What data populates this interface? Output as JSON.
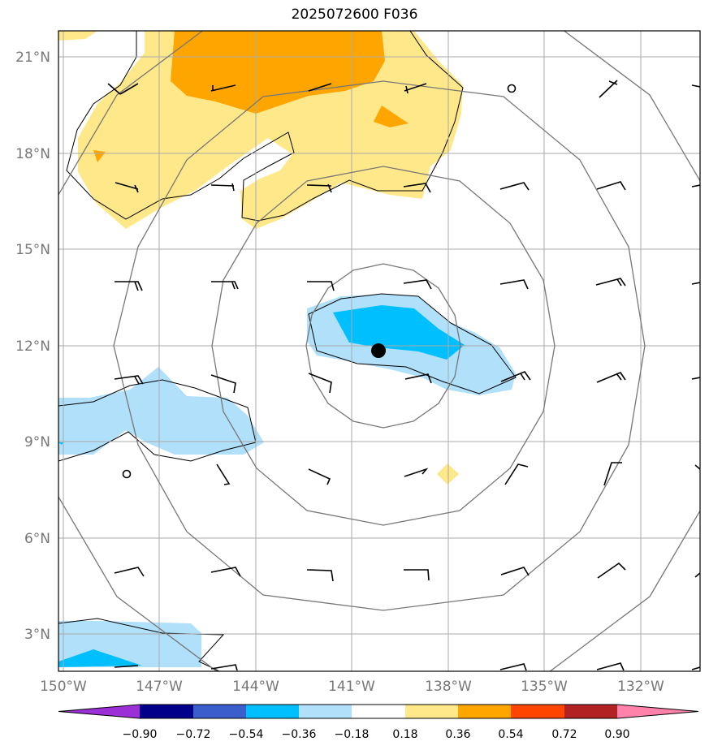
{
  "title": "2025072600 F036",
  "map": {
    "lat_labels": [
      "21°N",
      "18°N",
      "15°N",
      "12°N",
      "9°N",
      "6°N",
      "3°N"
    ],
    "lon_labels": [
      "150°W",
      "147°W",
      "144°W",
      "141°W",
      "138°W",
      "135°W",
      "132°W"
    ],
    "lat_values": [
      21,
      18,
      15,
      12,
      9,
      6,
      3
    ],
    "lon_values": [
      -150,
      -147,
      -144,
      -141,
      -138,
      -135,
      -132
    ],
    "extent": {
      "lon_min": -150,
      "lon_max": -130,
      "lat_min": 2,
      "lat_max": 22
    },
    "center_marker": {
      "lon": -140.1,
      "lat": 11.85
    },
    "range_rings_deg": [
      3,
      6,
      9,
      12
    ]
  },
  "colorbar": {
    "tick_labels": [
      "−0.90",
      "−0.72",
      "−0.54",
      "−0.36",
      "−0.18",
      "0.18",
      "0.36",
      "0.54",
      "0.72",
      "0.90"
    ],
    "colors": [
      "#9b30d6",
      "#00008b",
      "#3a5fcd",
      "#00bfff",
      "#b0e0fa",
      "#ffffff",
      "#ffe88a",
      "#ffa500",
      "#ff4500",
      "#b22222",
      "#ff82ab"
    ]
  },
  "colors": {
    "pos_light": "#ffe88a",
    "pos_mid": "#ffa500",
    "neg_light": "#b0e0fa",
    "neg_mid": "#00bfff",
    "grid": "#aaaaaa",
    "ring": "#777777"
  }
}
